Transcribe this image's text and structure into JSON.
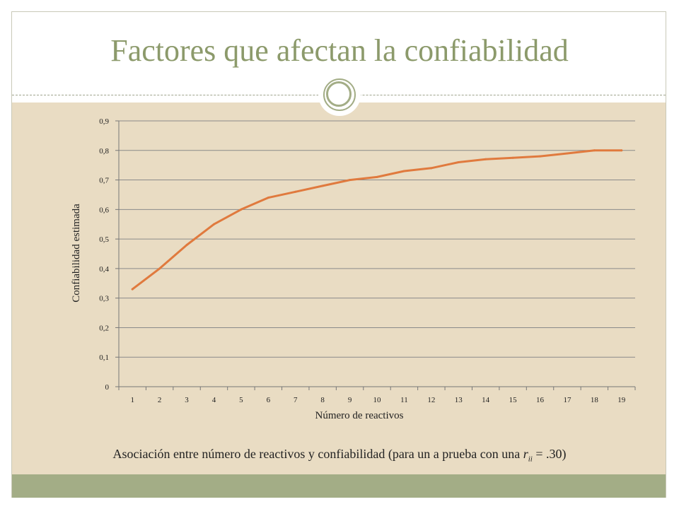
{
  "slide": {
    "title": "Factores que afectan la confiabilidad",
    "caption_text": "Asociación entre número de reactivos y confiabilidad (para un a prueba con una ",
    "caption_symbol": "r",
    "caption_subscript": "ii",
    "caption_end": " = .30)",
    "colors": {
      "title": "#8c9a6b",
      "content_band": "#e9dcc3",
      "footer_band": "#a3ad86",
      "series_line": "#e07a3e"
    },
    "ornament_icon": "double-circle-ornament-icon"
  },
  "chart_data": {
    "type": "line",
    "x": [
      "1",
      "2",
      "3",
      "4",
      "5",
      "6",
      "7",
      "8",
      "9",
      "10",
      "11",
      "12",
      "13",
      "14",
      "15",
      "16",
      "17",
      "18",
      "19"
    ],
    "series": [
      {
        "values": [
          0.33,
          0.4,
          0.48,
          0.55,
          0.6,
          0.64,
          0.66,
          0.68,
          0.7,
          0.71,
          0.73,
          0.74,
          0.76,
          0.77,
          0.775,
          0.78,
          0.79,
          0.8,
          0.8
        ]
      }
    ],
    "yticks": [
      "0",
      "0,1",
      "0,2",
      "0,3",
      "0,4",
      "0,5",
      "0,6",
      "0,7",
      "0,8",
      "0,9"
    ],
    "xlabel": "Número de reactivos",
    "ylabel": "Confiabilidad  estimada",
    "ylim": [
      0,
      0.9
    ],
    "grid": true,
    "legend": "none"
  }
}
